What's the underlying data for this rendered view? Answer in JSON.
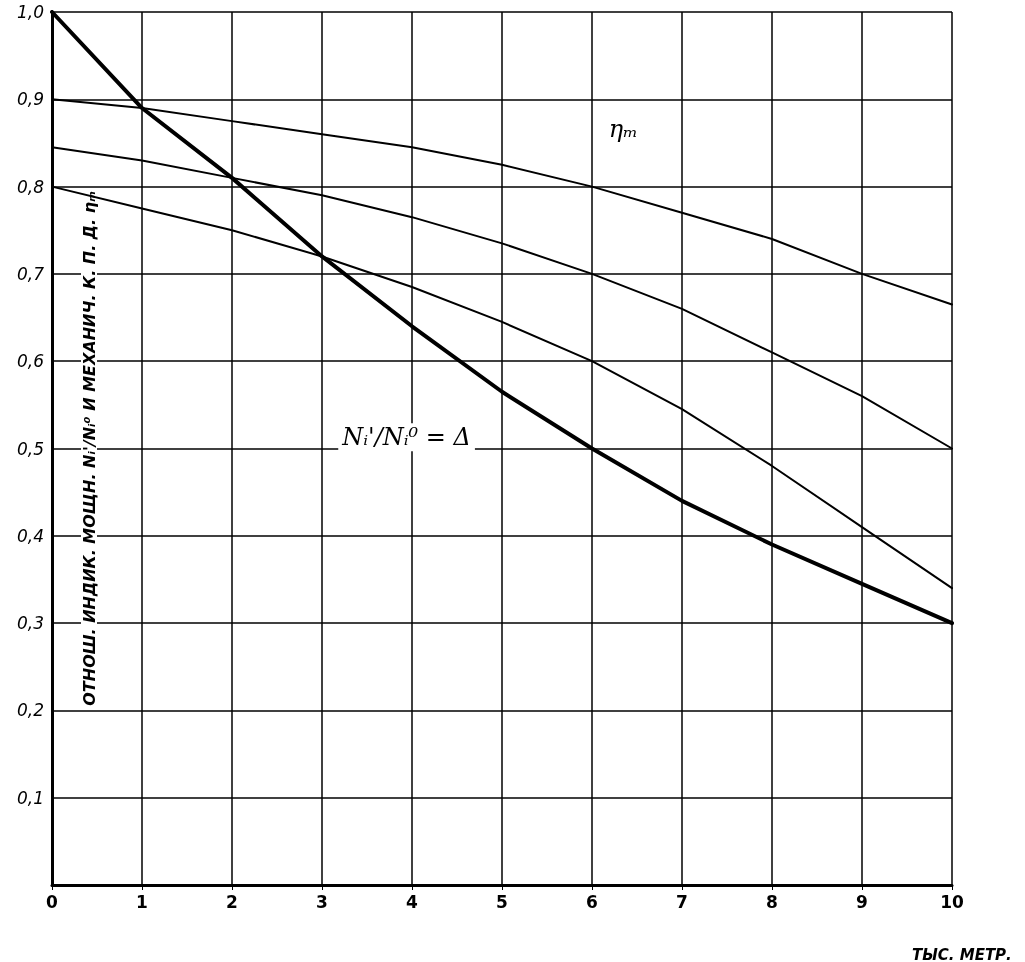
{
  "chart_data": {
    "type": "line",
    "xlabel": "ТЫС. МЕТР.",
    "ylabel": "ОТНОШ. ИНДИК. МОЩН. Nᵢ'/Nᵢ⁰ И МЕХАНИЧ. К. П. Д. ηₘ",
    "x": [
      0,
      1,
      2,
      3,
      4,
      5,
      6,
      7,
      8,
      9,
      10
    ],
    "series": [
      {
        "color": "#000000",
        "values": [
          1.0,
          0.89,
          0.81,
          0.72,
          0.64,
          0.565,
          0.5,
          0.44,
          0.39,
          0.345,
          0.3
        ]
      },
      {
        "color": "#000000",
        "values": [
          0.9,
          0.89,
          0.875,
          0.86,
          0.845,
          0.825,
          0.8,
          0.77,
          0.74,
          0.7,
          0.665
        ]
      },
      {
        "color": "#000000",
        "values": [
          0.845,
          0.83,
          0.81,
          0.79,
          0.765,
          0.735,
          0.7,
          0.66,
          0.61,
          0.56,
          0.5
        ]
      },
      {
        "color": "#000000",
        "values": [
          0.8,
          0.775,
          0.75,
          0.72,
          0.685,
          0.645,
          0.6,
          0.545,
          0.48,
          0.41,
          0.34
        ]
      }
    ],
    "annotations": [
      "ηₘ",
      "Nᵢ'/Nᵢ⁰ = Δ"
    ],
    "xlim": [
      0,
      10
    ],
    "xticks": [
      0,
      1,
      2,
      3,
      4,
      5,
      6,
      7,
      8,
      9,
      10
    ],
    "ylim": [
      0,
      1
    ],
    "yticks": [
      {
        "value": 0,
        "label": null
      },
      {
        "value": 0.1,
        "label": "0,1"
      },
      {
        "value": 0.2,
        "label": "0,2"
      },
      {
        "value": 0.3,
        "label": "0,3"
      },
      {
        "value": 0.4,
        "label": "0,4"
      },
      {
        "value": 0.5,
        "label": "0,5"
      },
      {
        "value": 0.6,
        "label": "0,6"
      },
      {
        "value": 0.7,
        "label": "0,7"
      },
      {
        "value": 0.8,
        "label": "0,8"
      },
      {
        "value": 0.9,
        "label": "0,9"
      },
      {
        "value": 1.0,
        "label": "1,0"
      }
    ],
    "grid": true,
    "marker": "none",
    "line_style": "solid"
  }
}
